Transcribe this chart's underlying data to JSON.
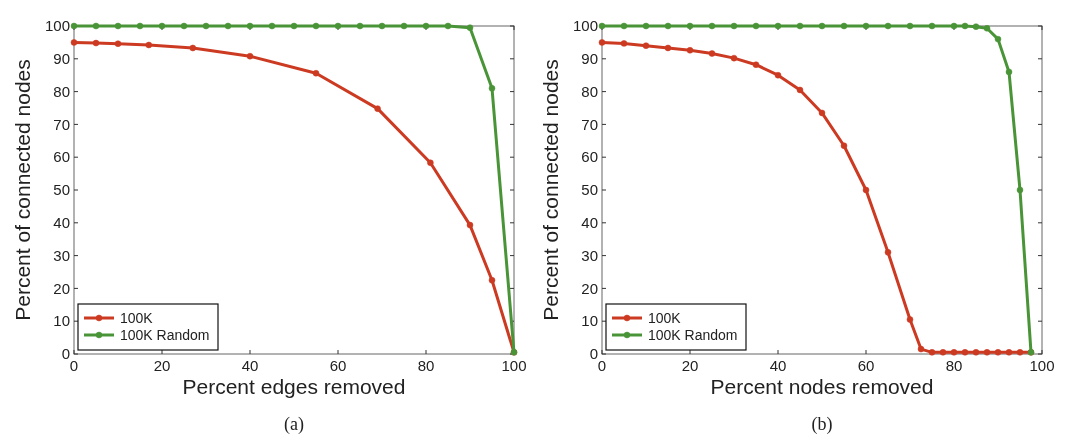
{
  "chart_data": [
    {
      "type": "line",
      "xlabel": "Percent edges removed",
      "ylabel": "Percent of connected nodes",
      "xlim": [
        0,
        100
      ],
      "ylim": [
        0,
        100
      ],
      "xticks": [
        0,
        20,
        40,
        60,
        80,
        100
      ],
      "yticks": [
        0,
        10,
        20,
        30,
        40,
        50,
        60,
        70,
        80,
        90,
        100
      ],
      "legend": "bottom left",
      "marker": "circle",
      "annotations": [
        "(a)"
      ],
      "series": [
        {
          "name": "100K",
          "color": "#cc3a22",
          "x": [
            0,
            5,
            10,
            17,
            27,
            40,
            55,
            69,
            81,
            90,
            95,
            100
          ],
          "values": [
            95,
            94.8,
            94.6,
            94.2,
            93.3,
            90.8,
            85.6,
            74.8,
            58.3,
            39.3,
            22.5,
            0.5
          ]
        },
        {
          "name": "100K Random",
          "color": "#4a9438",
          "x": [
            0,
            5,
            10,
            15,
            20,
            25,
            30,
            35,
            40,
            45,
            50,
            55,
            60,
            65,
            70,
            75,
            80,
            85,
            90,
            95,
            100
          ],
          "values": [
            100,
            100,
            100,
            100,
            100,
            100,
            100,
            100,
            100,
            100,
            100,
            100,
            100,
            100,
            100,
            100,
            100,
            100,
            99.5,
            81,
            0.5
          ]
        }
      ]
    },
    {
      "type": "line",
      "xlabel": "Percent nodes removed",
      "ylabel": "Percent of connected nodes",
      "xlim": [
        0,
        100
      ],
      "ylim": [
        0,
        100
      ],
      "xticks": [
        0,
        20,
        40,
        60,
        80,
        100
      ],
      "yticks": [
        0,
        10,
        20,
        30,
        40,
        50,
        60,
        70,
        80,
        90,
        100
      ],
      "legend": "bottom left",
      "marker": "circle",
      "annotations": [
        "(b)"
      ],
      "series": [
        {
          "name": "100K",
          "color": "#cc3a22",
          "x": [
            0,
            5,
            10,
            15,
            20,
            25,
            30,
            35,
            40,
            45,
            50,
            55,
            60,
            65,
            70,
            72.5,
            75,
            77.5,
            80,
            82.5,
            85,
            87.5,
            90,
            92.5,
            95,
            97.5
          ],
          "values": [
            95,
            94.7,
            94,
            93.3,
            92.6,
            91.6,
            90.2,
            88.2,
            85,
            80.5,
            73.5,
            63.5,
            50,
            31,
            10.5,
            1.5,
            0.5,
            0.5,
            0.5,
            0.5,
            0.5,
            0.5,
            0.5,
            0.5,
            0.5,
            0.5
          ]
        },
        {
          "name": "100K Random",
          "color": "#4a9438",
          "x": [
            0,
            5,
            10,
            15,
            20,
            25,
            30,
            35,
            40,
            45,
            50,
            55,
            60,
            65,
            70,
            75,
            80,
            82.5,
            85,
            87.5,
            90,
            92.5,
            95,
            97.5
          ],
          "values": [
            100,
            100,
            100,
            100,
            100,
            100,
            100,
            100,
            100,
            100,
            100,
            100,
            100,
            100,
            100,
            100,
            100,
            100,
            99.8,
            99.3,
            96,
            86,
            50,
            0.5
          ]
        }
      ]
    }
  ]
}
